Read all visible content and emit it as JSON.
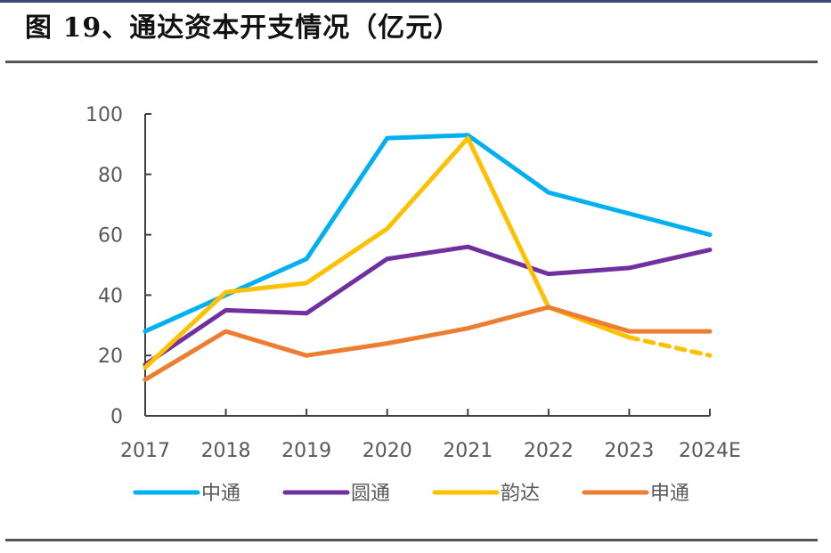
{
  "title": "图 19、通达资本开支情况（亿元）",
  "chart_data": {
    "type": "line",
    "title": "图 19、通达资本开支情况（亿元）",
    "xlabel": "",
    "ylabel": "",
    "categories": [
      "2017",
      "2018",
      "2019",
      "2020",
      "2021",
      "2022",
      "2023",
      "2024E"
    ],
    "ylim": [
      0,
      100
    ],
    "yticks": [
      0,
      20,
      40,
      60,
      80,
      100
    ],
    "grid": false,
    "legend_position": "bottom",
    "series": [
      {
        "name": "中通",
        "color": "#00b0f0",
        "values": [
          28,
          40,
          52,
          92,
          93,
          74,
          67,
          60
        ],
        "dashed_from_index": null
      },
      {
        "name": "圆通",
        "color": "#7030a0",
        "values": [
          17,
          35,
          34,
          52,
          56,
          47,
          49,
          55
        ],
        "dashed_from_index": null
      },
      {
        "name": "韵达",
        "color": "#ffc000",
        "values": [
          16,
          41,
          44,
          62,
          92,
          36,
          26,
          20
        ],
        "dashed_from_index": 6
      },
      {
        "name": "申通",
        "color": "#ed7d31",
        "values": [
          12,
          28,
          20,
          24,
          29,
          36,
          28,
          28
        ],
        "dashed_from_index": null
      }
    ]
  }
}
